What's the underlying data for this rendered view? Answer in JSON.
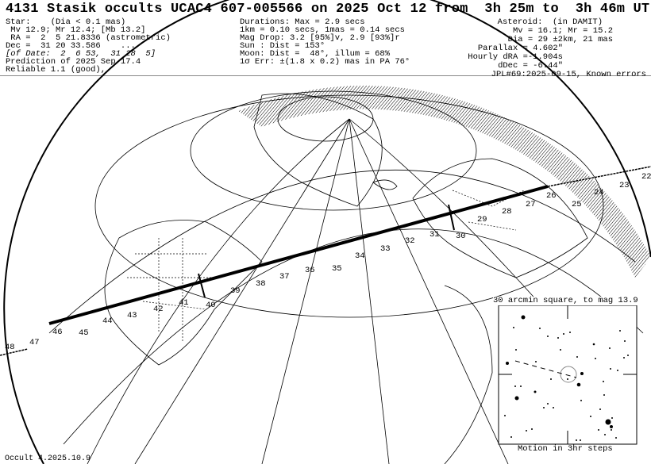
{
  "title": "4131 Stasik occults UCAC4 607-005566 on 2025 Oct 12 from  3h 25m to  3h 46m UT",
  "star": {
    "lines": [
      "Star:    (Dia < 0.1 mas)",
      " Mv 12.9; Mr 12.4; [Mb 13.2]",
      " RA =  2  5 21.8336 (astrometric)",
      "Dec =  31 20 33.586    ...",
      "[of Date:  2  6 53,  31 28  5]",
      "Prediction of 2025 Sep 17.4",
      "Reliable 1.1 (good),"
    ]
  },
  "event": {
    "lines": [
      "Durations: Max = 2.9 secs",
      "1km = 0.10 secs, 1mas = 0.14 secs",
      "Mag Drop: 3.2 [95%]v, 2.9 [93%]r",
      "Sun : Dist = 153°",
      "Moon: Dist =  48°, illum = 68%",
      "1σ Err: ±(1.8 x 0.2) mas in PA 76°"
    ]
  },
  "asteroid": {
    "lines": [
      "Asteroid:  (in DAMIT)",
      "Mv = 16.1; Mr = 15.2",
      "Dia = 29 ±2km, 21 mas",
      "Parallax = 4.602\"",
      "Hourly dRA =-1.904s",
      "dDec = -6.44\"",
      "JPL#69:2025-09-15, Known errors"
    ]
  },
  "path_time_labels": [
    "22",
    "23",
    "24",
    "25",
    "26",
    "27",
    "28",
    "29",
    "30",
    "31",
    "32",
    "33",
    "34",
    "35",
    "36",
    "37",
    "38",
    "39",
    "40",
    "41",
    "42",
    "43",
    "44",
    "45",
    "46",
    "47",
    "48"
  ],
  "inset": {
    "title": "30 arcmin square, to mag 13.9",
    "caption": "Motion in 3hr steps"
  },
  "footer": "Occult 4.2025.10.9"
}
